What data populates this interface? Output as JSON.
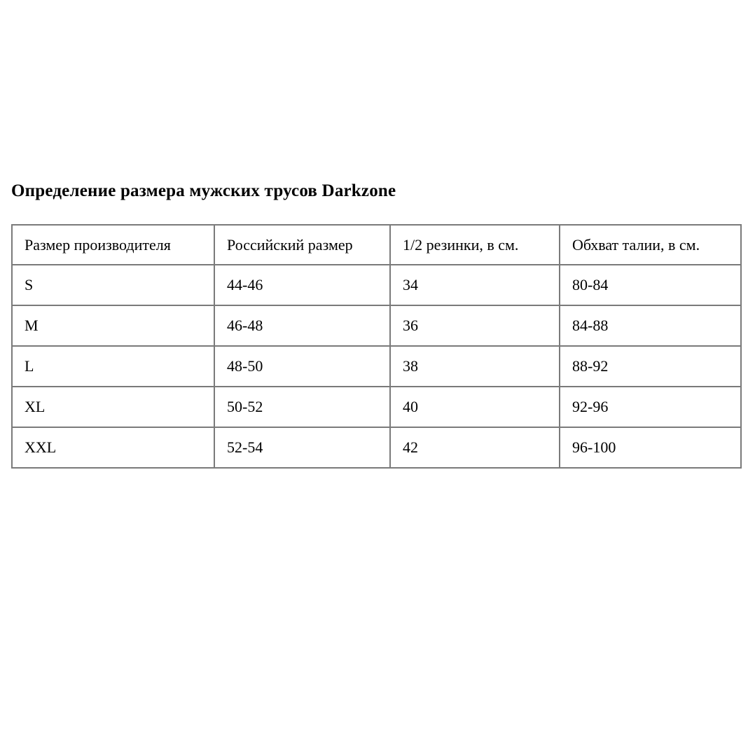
{
  "page": {
    "title": "Определение размера мужских трусов Darkzone"
  },
  "table": {
    "columns": [
      "Размер производителя",
      "Российский размер",
      "1/2 резинки, в см.",
      "Обхват талии, в см."
    ],
    "rows": [
      [
        "S",
        "44-46",
        "34",
        "80-84"
      ],
      [
        "M",
        "46-48",
        "36",
        "84-88"
      ],
      [
        "L",
        "48-50",
        "38",
        "88-92"
      ],
      [
        "XL",
        "50-52",
        "40",
        "92-96"
      ],
      [
        "XXL",
        "52-54",
        "42",
        "96-100"
      ]
    ]
  },
  "colors": {
    "background": "#ffffff",
    "text": "#000000",
    "table_border": "#7a7a7a"
  }
}
